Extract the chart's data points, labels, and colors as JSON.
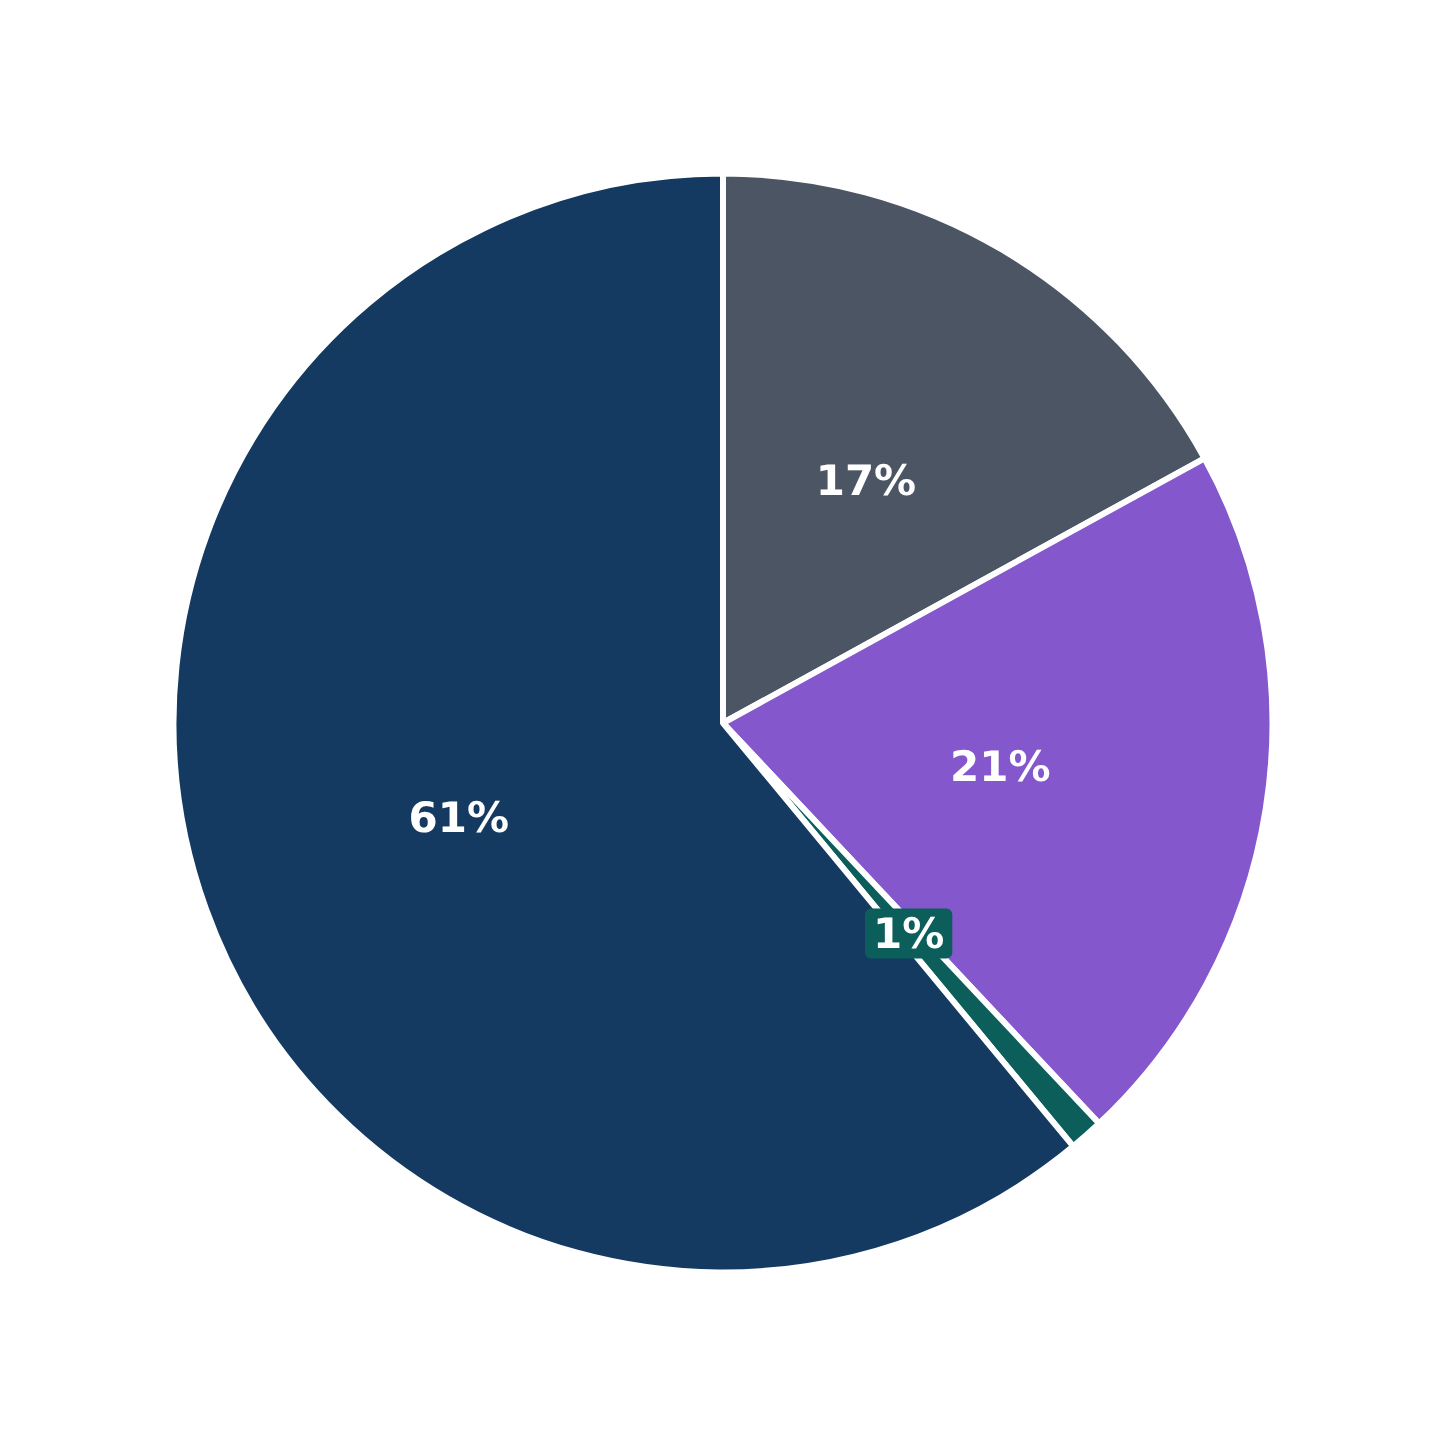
{
  "chart_data": {
    "type": "pie",
    "categories": [
      null,
      null,
      null,
      null
    ],
    "values": [
      17,
      21,
      1,
      61
    ],
    "colors": [
      "#4b5563",
      "#8457cd",
      "#0b5e5a",
      "#143a62"
    ],
    "value_labels": [
      "17%",
      "21%",
      "1%",
      "61%"
    ]
  }
}
